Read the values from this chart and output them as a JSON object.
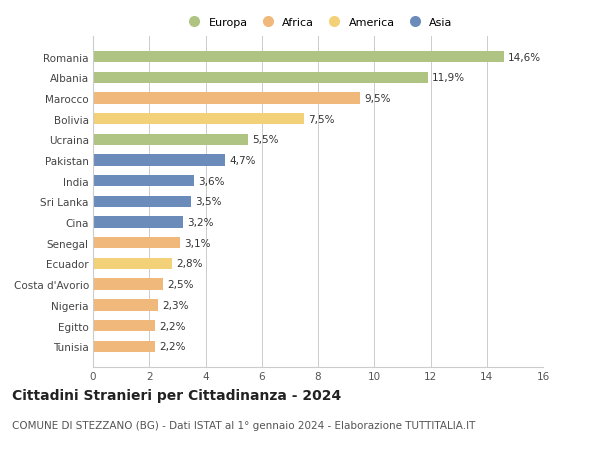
{
  "categories": [
    "Tunisia",
    "Egitto",
    "Nigeria",
    "Costa d'Avorio",
    "Ecuador",
    "Senegal",
    "Cina",
    "Sri Lanka",
    "India",
    "Pakistan",
    "Ucraina",
    "Bolivia",
    "Marocco",
    "Albania",
    "Romania"
  ],
  "values": [
    2.2,
    2.2,
    2.3,
    2.5,
    2.8,
    3.1,
    3.2,
    3.5,
    3.6,
    4.7,
    5.5,
    7.5,
    9.5,
    11.9,
    14.6
  ],
  "labels": [
    "2,2%",
    "2,2%",
    "2,3%",
    "2,5%",
    "2,8%",
    "3,1%",
    "3,2%",
    "3,5%",
    "3,6%",
    "4,7%",
    "5,5%",
    "7,5%",
    "9,5%",
    "11,9%",
    "14,6%"
  ],
  "colors": [
    "#f0b87a",
    "#f0b87a",
    "#f0b87a",
    "#f0b87a",
    "#f2d178",
    "#f0b87a",
    "#6b8cba",
    "#6b8cba",
    "#6b8cba",
    "#6b8cba",
    "#afc483",
    "#f2d178",
    "#f0b87a",
    "#afc483",
    "#afc483"
  ],
  "legend_labels": [
    "Europa",
    "Africa",
    "America",
    "Asia"
  ],
  "legend_colors": [
    "#afc483",
    "#f0b87a",
    "#f2d178",
    "#6b8cba"
  ],
  "title": "Cittadini Stranieri per Cittadinanza - 2024",
  "subtitle": "COMUNE DI STEZZANO (BG) - Dati ISTAT al 1° gennaio 2024 - Elaborazione TUTTITALIA.IT",
  "xlim": [
    0,
    16
  ],
  "xticks": [
    0,
    2,
    4,
    6,
    8,
    10,
    12,
    14,
    16
  ],
  "bg_color": "#ffffff",
  "grid_color": "#cccccc",
  "bar_height": 0.55,
  "label_fontsize": 7.5,
  "tick_fontsize": 7.5,
  "ytick_fontsize": 7.5,
  "title_fontsize": 10,
  "subtitle_fontsize": 7.5
}
